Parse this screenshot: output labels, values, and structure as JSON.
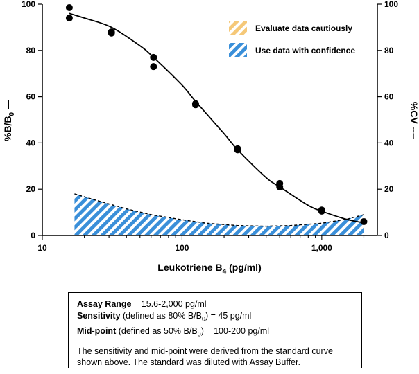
{
  "chart_data": {
    "type": "line",
    "xlabel": "Leukotriene B",
    "xlabel_sub": "4",
    "xlabel_suffix": " (pg/ml)",
    "ylabel_left": "%B/B",
    "ylabel_left_sub": "0",
    "ylabel_left_suffix": " —",
    "ylabel_right": "%CV ----",
    "x_scale": "log",
    "xlim": [
      10,
      2500
    ],
    "ylim": [
      0,
      100
    ],
    "x_ticks": [
      10,
      100,
      1000
    ],
    "x_tick_labels": [
      "10",
      "100",
      "1,000"
    ],
    "y_ticks": [
      0,
      20,
      40,
      60,
      80,
      100
    ],
    "y_tick_labels": [
      "0",
      "20",
      "40",
      "60",
      "80",
      "100"
    ],
    "y2_ticks": [
      0,
      20,
      40,
      60,
      80,
      100
    ],
    "y2_tick_labels": [
      "0",
      "20",
      "40",
      "60",
      "80",
      "100"
    ],
    "grid": false,
    "points": {
      "x": [
        15.6,
        15.6,
        31.25,
        31.25,
        62.5,
        62.5,
        125,
        125,
        250,
        250,
        500,
        500,
        1000,
        1000,
        2000
      ],
      "y": [
        98.5,
        94,
        88,
        87.5,
        77,
        73,
        57,
        56.5,
        37.5,
        37,
        22.5,
        21,
        11,
        10.5,
        6
      ]
    },
    "fit_curve": {
      "x": [
        15.6,
        20,
        31.25,
        50,
        62.5,
        100,
        125,
        200,
        250,
        400,
        500,
        800,
        1000,
        1500,
        2000
      ],
      "y": [
        96,
        94,
        90,
        82,
        77,
        65,
        58,
        44,
        37,
        25,
        21,
        13,
        10.5,
        7,
        5.5
      ]
    },
    "cv_curve": {
      "x": [
        17,
        25,
        40,
        60,
        100,
        150,
        250,
        400,
        600,
        1000,
        1500,
        2000
      ],
      "y": [
        18,
        15,
        11.5,
        9,
        6.8,
        5.3,
        4.3,
        4,
        4.3,
        5.3,
        7,
        9
      ]
    },
    "legend": {
      "position": "top-right",
      "items": [
        {
          "label": "Evaluate data cautiously",
          "color": "#f5c878",
          "pattern": "hatched"
        },
        {
          "label": "Use data with confidence",
          "color": "#3a8fd9",
          "pattern": "hatched"
        }
      ]
    }
  },
  "info_box": {
    "range_label": "Assay Range",
    "range_value": " = 15.6-2,000 pg/ml",
    "sens_label": "Sensitivity",
    "sens_pre": " (defined as 80% B/B",
    "sens_sub": "0",
    "sens_post": ") = 45 pg/ml",
    "mid_label": "Mid-point",
    "mid_pre": " (defined as 50% B/B",
    "mid_sub": "0",
    "mid_post": ") = 100-200 pg/ml",
    "note": "The sensitivity and mid-point were derived from the standard curve shown above. The standard was diluted with Assay Buffer."
  }
}
